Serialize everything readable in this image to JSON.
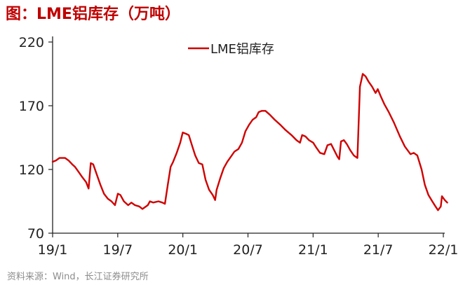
{
  "title": "图：LME铝库存（万吨）",
  "source": "资料来源：Wind，长江证券研究所",
  "colors": {
    "series": "#d00000",
    "title": "#c00000",
    "axis": "#222222"
  },
  "chart_data": {
    "type": "line",
    "title": "图：LME铝库存（万吨）",
    "xlabel": "",
    "ylabel": "",
    "ylim": [
      70,
      220
    ],
    "yticks": [
      70,
      120,
      170,
      220
    ],
    "xticks": [
      "19/1",
      "19/7",
      "20/1",
      "20/7",
      "21/1",
      "21/7",
      "22/1"
    ],
    "x_range": [
      "2019-01-01",
      "2022-01-01"
    ],
    "grid": false,
    "legend_position": "top-center",
    "series": [
      {
        "name": "LME铝库存",
        "points": [
          [
            "2019-01-01",
            126
          ],
          [
            "2019-01-10",
            127
          ],
          [
            "2019-01-20",
            129
          ],
          [
            "2019-02-05",
            129
          ],
          [
            "2019-02-15",
            127
          ],
          [
            "2019-02-25",
            124
          ],
          [
            "2019-03-05",
            122
          ],
          [
            "2019-03-15",
            118
          ],
          [
            "2019-03-25",
            114
          ],
          [
            "2019-04-05",
            110
          ],
          [
            "2019-04-12",
            105
          ],
          [
            "2019-04-18",
            125
          ],
          [
            "2019-04-25",
            124
          ],
          [
            "2019-05-05",
            116
          ],
          [
            "2019-05-15",
            108
          ],
          [
            "2019-05-25",
            101
          ],
          [
            "2019-06-05",
            97
          ],
          [
            "2019-06-15",
            95
          ],
          [
            "2019-06-25",
            92
          ],
          [
            "2019-07-03",
            101
          ],
          [
            "2019-07-10",
            100
          ],
          [
            "2019-07-20",
            95
          ],
          [
            "2019-08-01",
            92
          ],
          [
            "2019-08-10",
            94
          ],
          [
            "2019-08-20",
            92
          ],
          [
            "2019-09-01",
            91
          ],
          [
            "2019-09-10",
            89
          ],
          [
            "2019-09-25",
            92
          ],
          [
            "2019-10-01",
            95
          ],
          [
            "2019-10-10",
            94
          ],
          [
            "2019-10-25",
            95
          ],
          [
            "2019-11-05",
            94
          ],
          [
            "2019-11-12",
            93
          ],
          [
            "2019-11-20",
            108
          ],
          [
            "2019-11-28",
            122
          ],
          [
            "2019-12-05",
            126
          ],
          [
            "2019-12-15",
            133
          ],
          [
            "2019-12-25",
            141
          ],
          [
            "2020-01-01",
            149
          ],
          [
            "2020-01-10",
            148
          ],
          [
            "2020-01-18",
            147
          ],
          [
            "2020-01-28",
            138
          ],
          [
            "2020-02-05",
            131
          ],
          [
            "2020-02-15",
            125
          ],
          [
            "2020-02-25",
            124
          ],
          [
            "2020-03-05",
            112
          ],
          [
            "2020-03-15",
            104
          ],
          [
            "2020-03-25",
            100
          ],
          [
            "2020-04-01",
            96
          ],
          [
            "2020-04-05",
            104
          ],
          [
            "2020-04-15",
            113
          ],
          [
            "2020-04-25",
            121
          ],
          [
            "2020-05-05",
            126
          ],
          [
            "2020-05-15",
            130
          ],
          [
            "2020-05-25",
            134
          ],
          [
            "2020-06-05",
            136
          ],
          [
            "2020-06-15",
            141
          ],
          [
            "2020-06-25",
            150
          ],
          [
            "2020-07-05",
            155
          ],
          [
            "2020-07-15",
            159
          ],
          [
            "2020-07-25",
            161
          ],
          [
            "2020-08-01",
            165
          ],
          [
            "2020-08-10",
            166
          ],
          [
            "2020-08-20",
            166
          ],
          [
            "2020-09-01",
            163
          ],
          [
            "2020-09-15",
            159
          ],
          [
            "2020-10-01",
            155
          ],
          [
            "2020-10-15",
            151
          ],
          [
            "2020-11-01",
            147
          ],
          [
            "2020-11-15",
            143
          ],
          [
            "2020-11-25",
            141
          ],
          [
            "2020-12-01",
            147
          ],
          [
            "2020-12-10",
            146
          ],
          [
            "2020-12-20",
            143
          ],
          [
            "2021-01-01",
            141
          ],
          [
            "2021-01-10",
            137
          ],
          [
            "2021-01-20",
            133
          ],
          [
            "2021-02-01",
            132
          ],
          [
            "2021-02-10",
            139
          ],
          [
            "2021-02-20",
            140
          ],
          [
            "2021-03-01",
            135
          ],
          [
            "2021-03-10",
            130
          ],
          [
            "2021-03-15",
            128
          ],
          [
            "2021-03-20",
            142
          ],
          [
            "2021-03-28",
            143
          ],
          [
            "2021-04-05",
            140
          ],
          [
            "2021-04-15",
            135
          ],
          [
            "2021-04-25",
            131
          ],
          [
            "2021-05-05",
            129
          ],
          [
            "2021-05-12",
            185
          ],
          [
            "2021-05-20",
            195
          ],
          [
            "2021-05-28",
            193
          ],
          [
            "2021-06-05",
            189
          ],
          [
            "2021-06-15",
            185
          ],
          [
            "2021-06-25",
            180
          ],
          [
            "2021-07-01",
            183
          ],
          [
            "2021-07-10",
            177
          ],
          [
            "2021-07-20",
            171
          ],
          [
            "2021-08-01",
            165
          ],
          [
            "2021-08-15",
            157
          ],
          [
            "2021-09-01",
            146
          ],
          [
            "2021-09-15",
            138
          ],
          [
            "2021-10-01",
            132
          ],
          [
            "2021-10-10",
            133
          ],
          [
            "2021-10-20",
            131
          ],
          [
            "2021-11-01",
            120
          ],
          [
            "2021-11-10",
            108
          ],
          [
            "2021-11-20",
            100
          ],
          [
            "2021-12-01",
            95
          ],
          [
            "2021-12-10",
            91
          ],
          [
            "2021-12-17",
            88
          ],
          [
            "2021-12-25",
            91
          ],
          [
            "2021-12-28",
            99
          ],
          [
            "2022-01-05",
            96
          ],
          [
            "2022-01-12",
            94
          ]
        ]
      }
    ]
  }
}
